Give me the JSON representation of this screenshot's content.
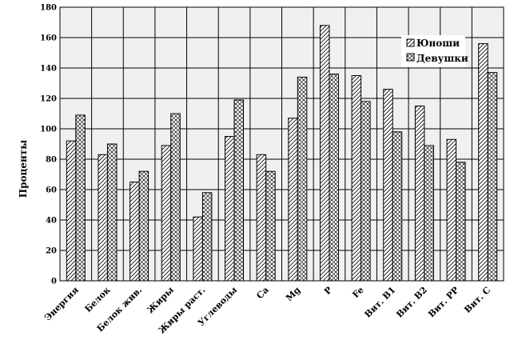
{
  "chart_data": {
    "type": "bar",
    "ylabel": "Проценты",
    "ylim": [
      0,
      180
    ],
    "yticks": [
      0,
      20,
      40,
      60,
      80,
      100,
      120,
      140,
      160,
      180
    ],
    "grid": true,
    "legend_position": "top-right",
    "categories": [
      "Энергия",
      "Белок",
      "Белок жив.",
      "Жиры",
      "Жиры раст.",
      "Углеводы",
      "Ca",
      "Mg",
      "P",
      "Fe",
      "Вит. B1",
      "Вит. B2",
      "Вит. PP",
      "Вит. C"
    ],
    "series": [
      {
        "name": "Юноши",
        "pattern": "diagonal-hatch",
        "values": [
          92,
          83,
          65,
          89,
          42,
          95,
          83,
          107,
          168,
          135,
          126,
          115,
          93,
          156
        ]
      },
      {
        "name": "Девушки",
        "pattern": "cross-hatch",
        "values": [
          109,
          90,
          72,
          110,
          58,
          119,
          72,
          134,
          136,
          118,
          98,
          89,
          78,
          137
        ]
      }
    ],
    "colors": {
      "plot_background": "#f0f0f0",
      "bar_fill": "#ffffff",
      "stroke": "#000000"
    }
  }
}
